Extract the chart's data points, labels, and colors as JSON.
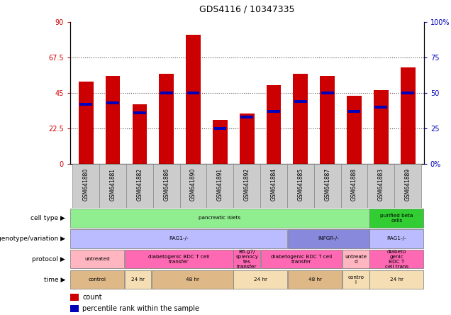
{
  "title": "GDS4116 / 10347335",
  "samples": [
    "GSM641880",
    "GSM641881",
    "GSM641882",
    "GSM641886",
    "GSM641890",
    "GSM641891",
    "GSM641892",
    "GSM641884",
    "GSM641885",
    "GSM641887",
    "GSM641888",
    "GSM641883",
    "GSM641889"
  ],
  "red_values": [
    52,
    56,
    38,
    57,
    82,
    28,
    32,
    50,
    57,
    56,
    43,
    47,
    61
  ],
  "blue_values": [
    42,
    43,
    36,
    50,
    50,
    25,
    33,
    37,
    44,
    50,
    37,
    40,
    50
  ],
  "ylim_left": [
    0,
    90
  ],
  "ylim_right": [
    0,
    100
  ],
  "yticks_left": [
    0,
    22.5,
    45,
    67.5,
    90
  ],
  "yticks_right": [
    0,
    25,
    50,
    75,
    100
  ],
  "ytick_labels_left": [
    "0",
    "22.5",
    "45",
    "67.5",
    "90"
  ],
  "ytick_labels_right": [
    "0%",
    "25",
    "50",
    "75",
    "100%"
  ],
  "hlines": [
    22.5,
    45,
    67.5
  ],
  "cell_type_groups": [
    {
      "label": "pancreatic islets",
      "start": 0,
      "end": 11,
      "color": "#90EE90"
    },
    {
      "label": "purified beta\ncells",
      "start": 11,
      "end": 13,
      "color": "#32CD32"
    }
  ],
  "genotype_groups": [
    {
      "label": "RAG1-/-",
      "start": 0,
      "end": 8,
      "color": "#BBBBFF"
    },
    {
      "label": "INFGR-/-",
      "start": 8,
      "end": 11,
      "color": "#8888DD"
    },
    {
      "label": "RAG1-/-",
      "start": 11,
      "end": 13,
      "color": "#BBBBFF"
    }
  ],
  "protocol_groups": [
    {
      "label": "untreated",
      "start": 0,
      "end": 2,
      "color": "#FFB6C1"
    },
    {
      "label": "diabetogenic BDC T cell\ntransfer",
      "start": 2,
      "end": 6,
      "color": "#FF69B4"
    },
    {
      "label": "B6.g7/\nsplenocy\ntes\ntransfer",
      "start": 6,
      "end": 7,
      "color": "#FF69B4"
    },
    {
      "label": "diabetogenic BDC T cell\ntransfer",
      "start": 7,
      "end": 10,
      "color": "#FF69B4"
    },
    {
      "label": "untreate\nd",
      "start": 10,
      "end": 11,
      "color": "#FFB6C1"
    },
    {
      "label": "diabeto\ngenic\nBDC T\ncell trans",
      "start": 11,
      "end": 13,
      "color": "#FF69B4"
    }
  ],
  "time_groups": [
    {
      "label": "control",
      "start": 0,
      "end": 2,
      "color": "#DEB887"
    },
    {
      "label": "24 hr",
      "start": 2,
      "end": 3,
      "color": "#F5DEB3"
    },
    {
      "label": "48 hr",
      "start": 3,
      "end": 6,
      "color": "#DEB887"
    },
    {
      "label": "24 hr",
      "start": 6,
      "end": 8,
      "color": "#F5DEB3"
    },
    {
      "label": "48 hr",
      "start": 8,
      "end": 10,
      "color": "#DEB887"
    },
    {
      "label": "contro\nl",
      "start": 10,
      "end": 11,
      "color": "#F5DEB3"
    },
    {
      "label": "24 hr",
      "start": 11,
      "end": 13,
      "color": "#F5DEB3"
    }
  ],
  "row_labels": [
    "cell type",
    "genotype/variation",
    "protocol",
    "time"
  ],
  "bar_width": 0.55,
  "bar_color_red": "#CC0000",
  "bar_color_blue": "#0000BB",
  "left_label_color": "#CC0000",
  "right_label_color": "#0000BB",
  "grid_color": "#555555",
  "background_color": "#FFFFFF",
  "sample_bg_color": "#CCCCCC"
}
